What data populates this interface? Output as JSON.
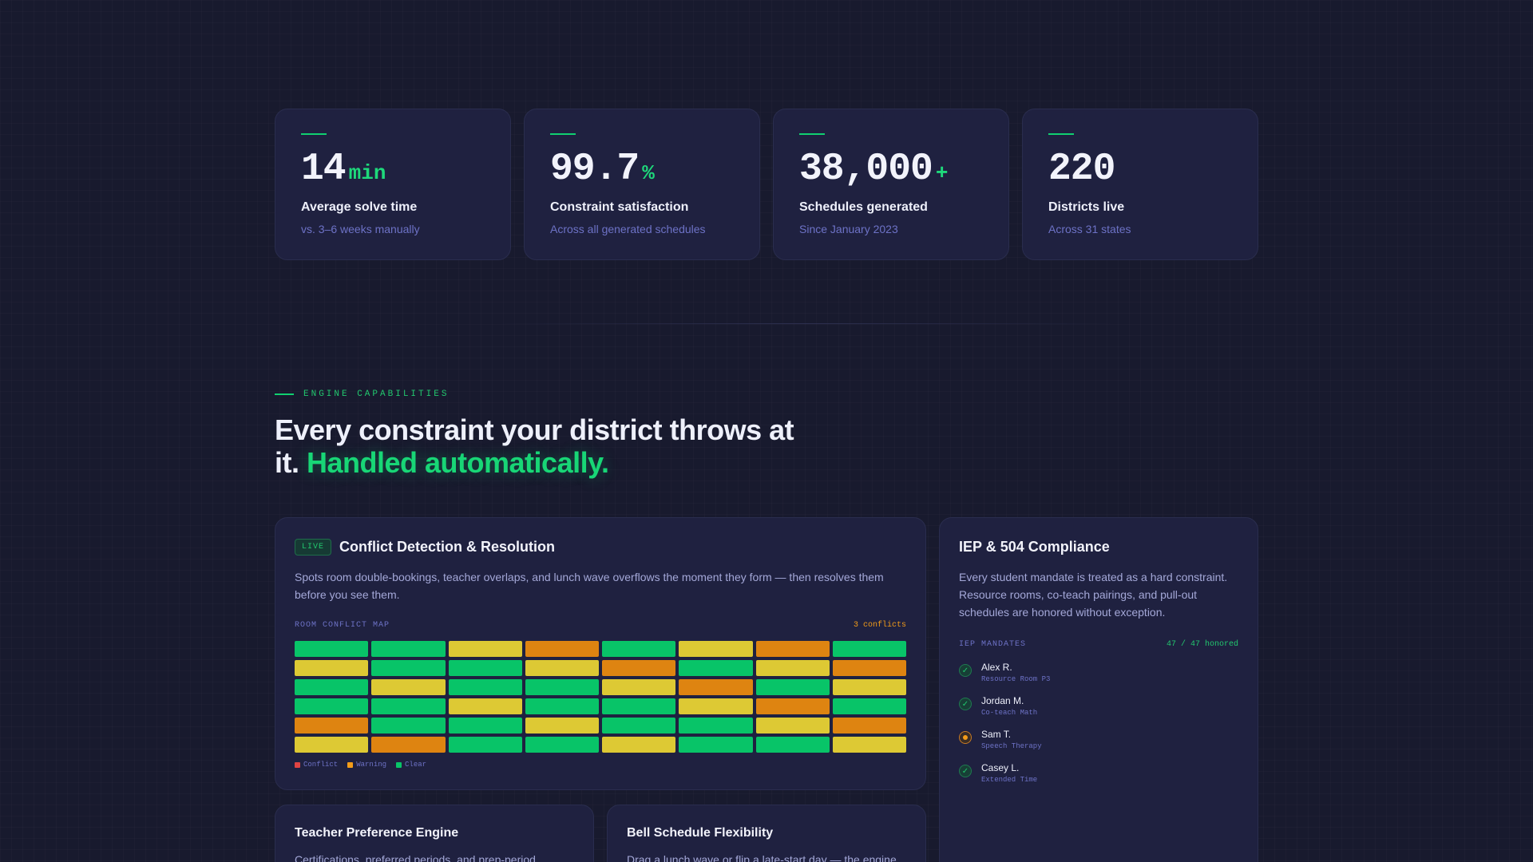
{
  "stats": [
    {
      "number": "14",
      "suffix": "min",
      "label": "Average solve time",
      "sub": "vs. 3–6 weeks manually"
    },
    {
      "number": "99.7",
      "suffix": "%",
      "label": "Constraint satisfaction",
      "sub": "Across all generated schedules"
    },
    {
      "number": "38,000",
      "suffix": "+",
      "label": "Schedules generated",
      "sub": "Since January 2023"
    },
    {
      "number": "220",
      "suffix": "",
      "label": "Districts live",
      "sub": "Across 31 states"
    }
  ],
  "section": {
    "eyebrow": "ENGINE CAPABILITIES",
    "headline_main": "Every constraint your district throws at it.",
    "headline_accent": "Handled automatically."
  },
  "conflict_card": {
    "badge": "LIVE",
    "title": "Conflict Detection & Resolution",
    "description": "Spots room double-bookings, teacher overlaps, and lunch wave overflows the moment they form — then resolves them before you see them.",
    "map_label": "ROOM CONFLICT MAP",
    "map_count": "3 conflicts",
    "grid": [
      [
        "clear",
        "clear",
        "warn",
        "orange",
        "clear",
        "warn",
        "orange",
        "clear"
      ],
      [
        "warn",
        "clear",
        "clear",
        "warn",
        "orange",
        "clear",
        "warn",
        "orange"
      ],
      [
        "clear",
        "warn",
        "clear",
        "clear",
        "warn",
        "orange",
        "clear",
        "warn"
      ],
      [
        "clear",
        "clear",
        "warn",
        "clear",
        "clear",
        "warn",
        "orange",
        "clear"
      ],
      [
        "orange",
        "clear",
        "clear",
        "warn",
        "clear",
        "clear",
        "warn",
        "orange"
      ],
      [
        "warn",
        "orange",
        "clear",
        "clear",
        "warn",
        "clear",
        "clear",
        "warn"
      ]
    ],
    "legend": [
      {
        "label": "Conflict",
        "color": "#e04343"
      },
      {
        "label": "Warning",
        "color": "#f39c19"
      },
      {
        "label": "Clear",
        "color": "#08c468"
      }
    ]
  },
  "iep_card": {
    "title": "IEP & 504 Compliance",
    "description": "Every student mandate is treated as a hard constraint. Resource rooms, co-teach pairings, and pull-out schedules are honored without exception.",
    "list_label": "IEP MANDATES",
    "list_count": "47 / 47 honored",
    "students": [
      {
        "name": "Alex R.",
        "note": "Resource Room P3",
        "status": "ok"
      },
      {
        "name": "Jordan M.",
        "note": "Co-teach Math",
        "status": "ok"
      },
      {
        "name": "Sam T.",
        "note": "Speech Therapy",
        "status": "pending"
      },
      {
        "name": "Casey L.",
        "note": "Extended Time",
        "status": "ok"
      }
    ]
  },
  "teacher_card": {
    "title": "Teacher Preference Engine",
    "description": "Certifications, preferred periods, and prep-period"
  },
  "bell_card": {
    "title": "Bell Schedule Flexibility",
    "description": "Drag a lunch wave or flip a late-start day — the engine"
  }
}
